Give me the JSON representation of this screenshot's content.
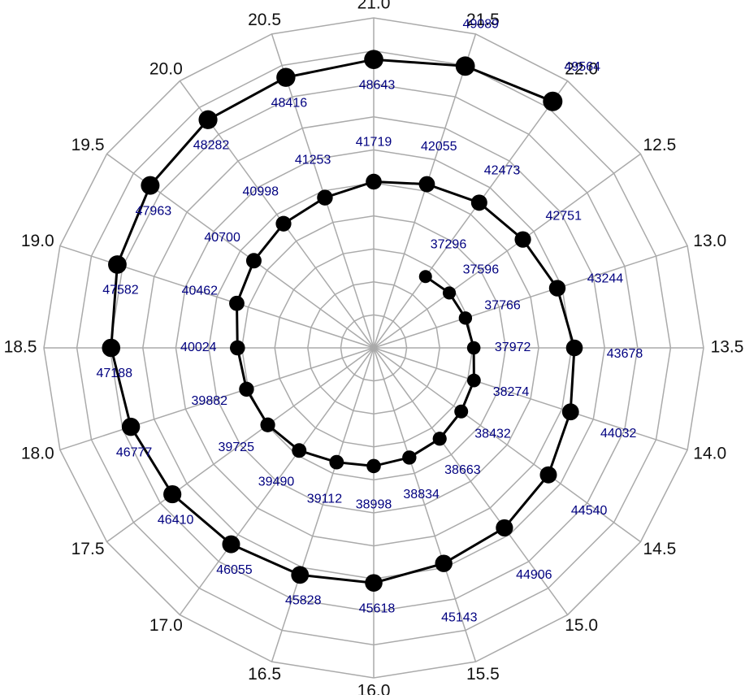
{
  "chart_data": {
    "type": "polar",
    "x": [
      22.0,
      12.5,
      13.0,
      13.5,
      14.0,
      14.5,
      15.0,
      15.5,
      16.0,
      16.5,
      17.0,
      17.5,
      18.0,
      18.5,
      19.0,
      19.5,
      20.0,
      20.5,
      21.0,
      21.5,
      22.0,
      12.5,
      13.0,
      13.5,
      14.0,
      14.5,
      15.0,
      15.5,
      16.0,
      16.5,
      17.0,
      17.5,
      18.0,
      18.5,
      19.0,
      19.5,
      20.0,
      20.5,
      21.0,
      21.5,
      22.0
    ],
    "values": [
      37296,
      37596,
      37766,
      37972,
      38274,
      38432,
      38663,
      38834,
      38998,
      39112,
      39490,
      39725,
      39882,
      40024,
      40462,
      40700,
      40998,
      41253,
      41719,
      42055,
      42473,
      42751,
      43244,
      43678,
      44032,
      44540,
      44906,
      45143,
      45618,
      45828,
      46055,
      46410,
      46777,
      47188,
      47582,
      47963,
      48282,
      48416,
      48643,
      49089,
      49564
    ],
    "xlim": [
      12.5,
      22.5
    ],
    "xticks": [
      {
        "value": 12.5,
        "label": "12.5"
      },
      {
        "value": 13.0,
        "label": "13.0"
      },
      {
        "value": 13.5,
        "label": "13.5"
      },
      {
        "value": 14.0,
        "label": "14.0"
      },
      {
        "value": 14.5,
        "label": "14.5"
      },
      {
        "value": 15.0,
        "label": "15.0"
      },
      {
        "value": 15.5,
        "label": "15.5"
      },
      {
        "value": 16.0,
        "label": "16.0"
      },
      {
        "value": 16.5,
        "label": "16.5"
      },
      {
        "value": 17.0,
        "label": "17.0"
      },
      {
        "value": 17.5,
        "label": "17.5"
      },
      {
        "value": 18.0,
        "label": "18.0"
      },
      {
        "value": 18.5,
        "label": "18.5"
      },
      {
        "value": 19.0,
        "label": "19.0"
      },
      {
        "value": 19.5,
        "label": "19.5"
      },
      {
        "value": 20.0,
        "label": "20.0"
      },
      {
        "value": 20.5,
        "label": "20.5"
      },
      {
        "value": 21.0,
        "label": "21.0"
      },
      {
        "value": 21.5,
        "label": "21.5"
      },
      {
        "value": 22.0,
        "label": "22.0"
      }
    ],
    "top_tick": 21.0,
    "rlim": [
      32300,
      51000
    ],
    "color": "#000000",
    "label_color": "#000080",
    "grid": true
  }
}
